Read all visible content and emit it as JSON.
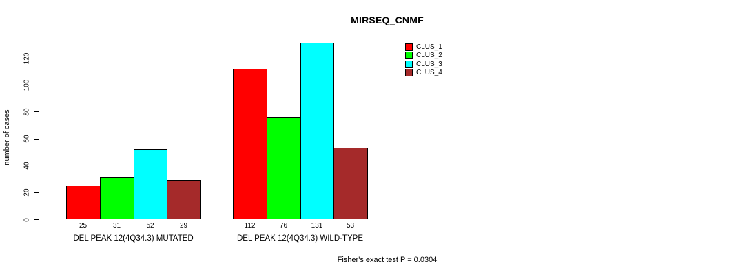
{
  "title": "MIRSEQ_CNMF",
  "ylabel": "number of cases",
  "footer": "Fisher's exact test P = 0.0304",
  "chart_data": {
    "type": "bar",
    "title": "MIRSEQ_CNMF",
    "xlabel": "",
    "ylabel": "number of cases",
    "categories": [
      "DEL PEAK 12(4Q34.3) MUTATED",
      "DEL PEAK 12(4Q34.3) WILD-TYPE"
    ],
    "series": [
      {
        "name": "CLUS_1",
        "color": "#FF0000",
        "values": [
          25,
          112
        ]
      },
      {
        "name": "CLUS_2",
        "color": "#00FF00",
        "values": [
          31,
          76
        ]
      },
      {
        "name": "CLUS_3",
        "color": "#00FFFF",
        "values": [
          52,
          131
        ]
      },
      {
        "name": "CLUS_4",
        "color": "#A52A2A",
        "values": [
          29,
          53
        ]
      }
    ],
    "bar_value_labels": [
      [
        "25",
        "31",
        "52",
        "29"
      ],
      [
        "112",
        "76",
        "131",
        "53"
      ]
    ],
    "yticks": [
      0,
      20,
      40,
      60,
      80,
      100,
      120
    ],
    "ylim": [
      0,
      136
    ],
    "grid": false,
    "legend_position": "top-right-inside",
    "annotation": "Fisher's exact test P = 0.0304"
  }
}
